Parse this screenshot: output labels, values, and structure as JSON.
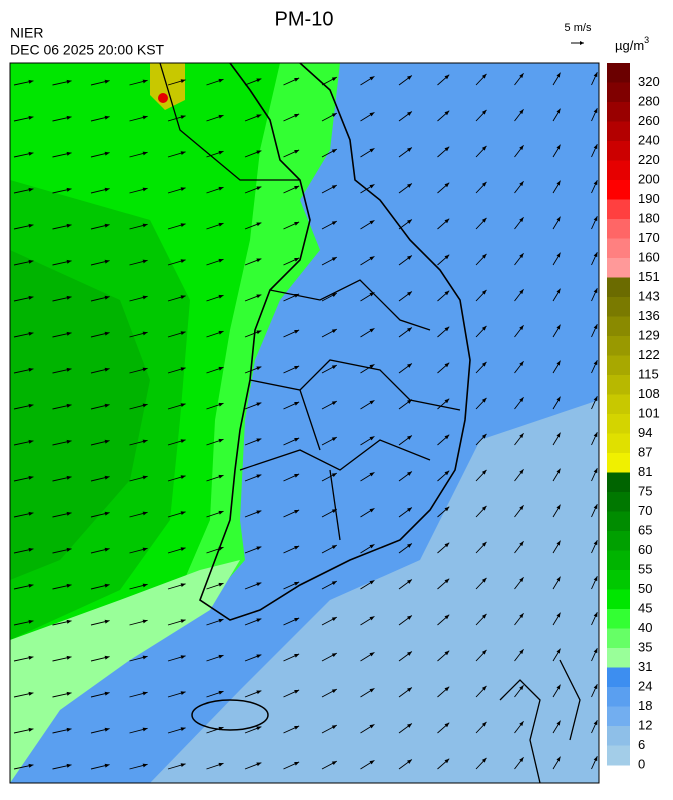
{
  "header": {
    "title": "PM-10",
    "source": "NIER",
    "timestamp": "DEC 06 2025 20:00 KST"
  },
  "wind_scale": {
    "label": "5 m/s"
  },
  "colorbar": {
    "unit": "µg/m",
    "unit_superscript": "3",
    "labels": [
      320,
      280,
      260,
      240,
      220,
      200,
      190,
      180,
      170,
      160,
      151,
      143,
      136,
      129,
      122,
      115,
      108,
      101,
      94,
      87,
      81,
      75,
      70,
      65,
      60,
      55,
      50,
      45,
      40,
      35,
      31,
      24,
      18,
      12,
      6,
      0
    ],
    "colors": [
      "#6b0000",
      "#800000",
      "#990000",
      "#b30000",
      "#cc0000",
      "#e60000",
      "#ff0000",
      "#ff4040",
      "#ff6666",
      "#ff8080",
      "#ff9999",
      "#6b6b00",
      "#7a7a00",
      "#8a8a00",
      "#999900",
      "#a8a800",
      "#b8b800",
      "#c8c800",
      "#d4d400",
      "#e0e000",
      "#f0f000",
      "#006400",
      "#007800",
      "#008c00",
      "#00a000",
      "#00b400",
      "#00c800",
      "#00e600",
      "#33ff33",
      "#66ff66",
      "#99ff99",
      "#3d8ef0",
      "#5a9ff0",
      "#72aef0",
      "#8ebfe8",
      "#a3cde8"
    ]
  }
}
